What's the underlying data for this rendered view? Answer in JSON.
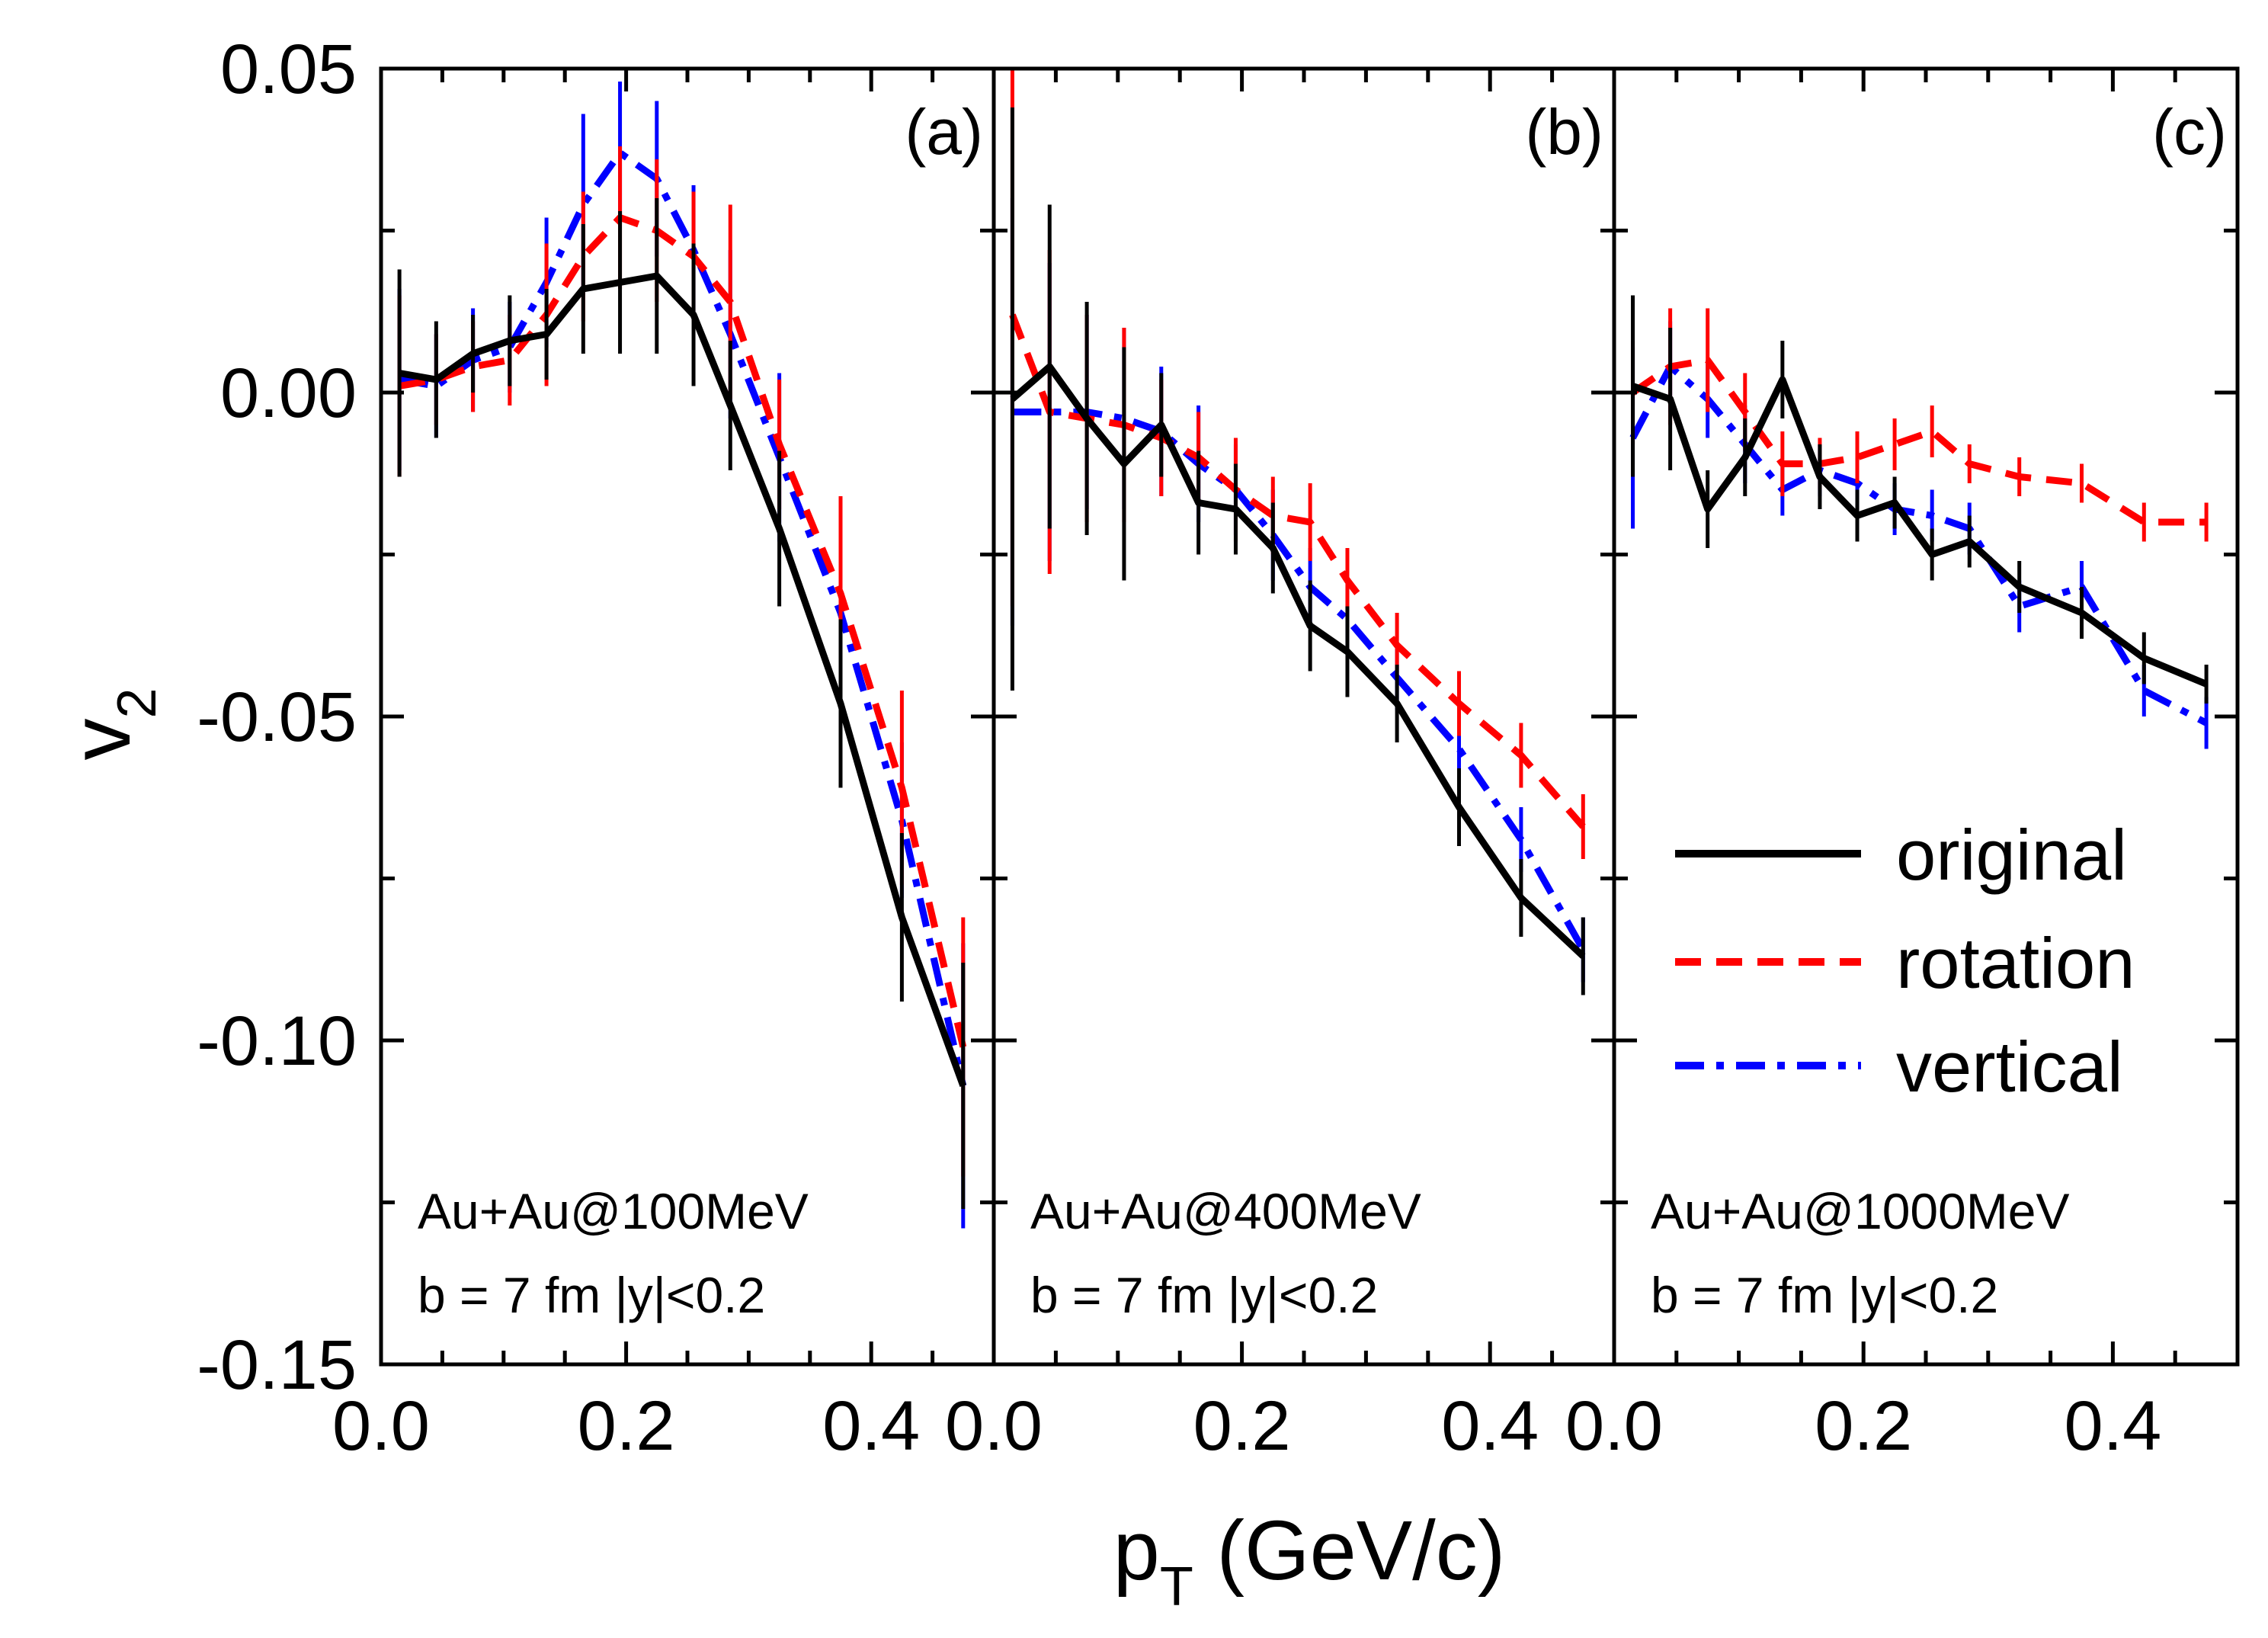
{
  "chart_data": {
    "type": "line",
    "ylabel": "v",
    "ylabel_sub": "2",
    "xlabel": "p",
    "xlabel_sub": "T",
    "xlabel_suffix": " (GeV/c)",
    "ylim": [
      -0.15,
      0.05
    ],
    "yticks": [
      0.05,
      0.0,
      -0.05,
      -0.1,
      -0.15
    ],
    "ytick_labels": [
      "0.05",
      "0.00",
      "-0.05",
      "-0.10",
      "-0.15"
    ],
    "legend": {
      "position": "right-middle of panel (c)",
      "entries": [
        {
          "name": "original",
          "color": "#000000",
          "style": "solid"
        },
        {
          "name": "rotation",
          "color": "#ff0000",
          "style": "dashed"
        },
        {
          "name": "vertical",
          "color": "#0000ff",
          "style": "dash-dot"
        }
      ]
    },
    "panels": [
      {
        "label": "(a)",
        "annotation": [
          "Au+Au@100MeV",
          "b = 7 fm  |y|<0.2"
        ],
        "xlim": [
          0,
          0.5
        ],
        "xtick_labels": [
          "0.0",
          "0.2",
          "0.4"
        ],
        "xticks": [
          0.0,
          0.2,
          0.4
        ],
        "series": [
          {
            "name": "original",
            "color": "#000000",
            "x": [
              0.015,
              0.045,
              0.075,
              0.105,
              0.135,
              0.165,
              0.195,
              0.225,
              0.255,
              0.285,
              0.325,
              0.375,
              0.425,
              0.475
            ],
            "y": [
              0.003,
              0.002,
              0.006,
              0.008,
              0.009,
              0.016,
              0.017,
              0.018,
              0.012,
              -0.002,
              -0.021,
              -0.048,
              -0.081,
              -0.107
            ],
            "err": [
              0.016,
              0.009,
              0.006,
              0.007,
              0.007,
              0.01,
              0.011,
              0.012,
              0.011,
              0.01,
              0.012,
              0.013,
              0.013,
              0.019
            ]
          },
          {
            "name": "rotation",
            "color": "#ff0000",
            "x": [
              0.015,
              0.045,
              0.075,
              0.105,
              0.135,
              0.165,
              0.195,
              0.225,
              0.255,
              0.285,
              0.325,
              0.375,
              0.425,
              0.475
            ],
            "y": [
              0.001,
              0.002,
              0.004,
              0.005,
              0.012,
              0.021,
              0.027,
              0.025,
              0.021,
              0.014,
              -0.008,
              -0.031,
              -0.061,
              -0.101
            ],
            "err": [
              0.014,
              0.007,
              0.007,
              0.007,
              0.011,
              0.01,
              0.011,
              0.011,
              0.01,
              0.015,
              0.01,
              0.015,
              0.015,
              0.02
            ]
          },
          {
            "name": "vertical",
            "color": "#0000ff",
            "x": [
              0.015,
              0.045,
              0.075,
              0.105,
              0.135,
              0.165,
              0.195,
              0.225,
              0.255,
              0.285,
              0.325,
              0.375,
              0.425,
              0.475
            ],
            "y": [
              0.002,
              0.001,
              0.005,
              0.007,
              0.017,
              0.029,
              0.037,
              0.033,
              0.022,
              0.009,
              -0.01,
              -0.034,
              -0.066,
              -0.107
            ],
            "err": [
              0.014,
              0.008,
              0.008,
              0.007,
              0.01,
              0.014,
              0.011,
              0.012,
              0.01,
              0.013,
              0.013,
              0.014,
              0.012,
              0.022
            ]
          }
        ]
      },
      {
        "label": "(b)",
        "annotation": [
          "Au+Au@400MeV",
          "b = 7 fm  |y|<0.2"
        ],
        "xlim": [
          0,
          0.5
        ],
        "xtick_labels": [
          "0.0",
          "0.2",
          "0.4"
        ],
        "xticks": [
          0.0,
          0.2,
          0.4
        ],
        "series": [
          {
            "name": "original",
            "color": "#000000",
            "x": [
              0.015,
              0.045,
              0.075,
              0.105,
              0.135,
              0.165,
              0.195,
              0.225,
              0.255,
              0.285,
              0.325,
              0.375,
              0.425,
              0.475
            ],
            "y": [
              -0.001,
              0.004,
              -0.004,
              -0.011,
              -0.005,
              -0.017,
              -0.018,
              -0.024,
              -0.036,
              -0.04,
              -0.048,
              -0.064,
              -0.078,
              -0.087
            ],
            "err": [
              0.045,
              0.025,
              0.018,
              0.018,
              0.008,
              0.008,
              0.007,
              0.007,
              0.007,
              0.007,
              0.006,
              0.006,
              0.006,
              0.006
            ]
          },
          {
            "name": "rotation",
            "color": "#ff0000",
            "x": [
              0.015,
              0.045,
              0.075,
              0.105,
              0.135,
              0.165,
              0.195,
              0.225,
              0.255,
              0.285,
              0.325,
              0.375,
              0.425,
              0.475
            ],
            "y": [
              0.012,
              -0.003,
              -0.004,
              -0.005,
              -0.007,
              -0.01,
              -0.015,
              -0.019,
              -0.02,
              -0.029,
              -0.039,
              -0.048,
              -0.056,
              -0.067
            ],
            "err": [
              0.045,
              0.025,
              0.016,
              0.015,
              0.009,
              0.007,
              0.008,
              0.006,
              0.006,
              0.005,
              0.005,
              0.005,
              0.005,
              0.005
            ]
          },
          {
            "name": "vertical",
            "color": "#0000ff",
            "x": [
              0.015,
              0.045,
              0.075,
              0.105,
              0.135,
              0.165,
              0.195,
              0.225,
              0.255,
              0.285,
              0.325,
              0.375,
              0.425,
              0.475
            ],
            "y": [
              -0.003,
              -0.003,
              -0.003,
              -0.004,
              -0.006,
              -0.011,
              -0.015,
              -0.022,
              -0.03,
              -0.035,
              -0.044,
              -0.055,
              -0.069,
              -0.086
            ],
            "err": [
              0.033,
              0.023,
              0.015,
              0.014,
              0.01,
              0.009,
              0.007,
              0.007,
              0.006,
              0.006,
              0.005,
              0.005,
              0.005,
              0.005
            ]
          }
        ]
      },
      {
        "label": "(c)",
        "annotation": [
          "Au+Au@1000MeV",
          "b = 7 fm  |y|<0.2"
        ],
        "xlim": [
          0,
          0.5
        ],
        "xtick_labels": [
          "0.0",
          "0.2",
          "0.4"
        ],
        "xticks": [
          0.0,
          0.2,
          0.4
        ],
        "series": [
          {
            "name": "original",
            "color": "#000000",
            "x": [
              0.015,
              0.045,
              0.075,
              0.105,
              0.135,
              0.165,
              0.195,
              0.225,
              0.255,
              0.285,
              0.325,
              0.375,
              0.425,
              0.475
            ],
            "y": [
              0.001,
              -0.001,
              -0.018,
              -0.01,
              0.002,
              -0.013,
              -0.019,
              -0.017,
              -0.025,
              -0.023,
              -0.03,
              -0.034,
              -0.041,
              -0.045
            ],
            "err": [
              0.014,
              0.011,
              0.006,
              0.006,
              0.006,
              0.005,
              0.004,
              0.004,
              0.004,
              0.004,
              0.004,
              0.004,
              0.004,
              0.003
            ]
          },
          {
            "name": "rotation",
            "color": "#ff0000",
            "x": [
              0.015,
              0.045,
              0.075,
              0.105,
              0.135,
              0.165,
              0.195,
              0.225,
              0.255,
              0.285,
              0.325,
              0.375,
              0.425,
              0.475
            ],
            "y": [
              0.0,
              0.004,
              0.005,
              -0.003,
              -0.011,
              -0.011,
              -0.01,
              -0.008,
              -0.006,
              -0.011,
              -0.013,
              -0.014,
              -0.02,
              -0.02
            ],
            "err": [
              0.008,
              0.009,
              0.008,
              0.006,
              0.005,
              0.004,
              0.004,
              0.004,
              0.004,
              0.003,
              0.003,
              0.003,
              0.003,
              0.003
            ]
          },
          {
            "name": "vertical",
            "color": "#0000ff",
            "x": [
              0.015,
              0.045,
              0.075,
              0.105,
              0.135,
              0.165,
              0.195,
              0.225,
              0.255,
              0.285,
              0.325,
              0.375,
              0.425,
              0.475
            ],
            "y": [
              -0.007,
              0.004,
              -0.001,
              -0.008,
              -0.015,
              -0.012,
              -0.014,
              -0.018,
              -0.019,
              -0.021,
              -0.033,
              -0.03,
              -0.046,
              -0.051
            ],
            "err": [
              0.014,
              0.007,
              0.006,
              0.006,
              0.004,
              0.004,
              0.004,
              0.004,
              0.004,
              0.004,
              0.004,
              0.004,
              0.004,
              0.004
            ]
          }
        ]
      }
    ]
  }
}
